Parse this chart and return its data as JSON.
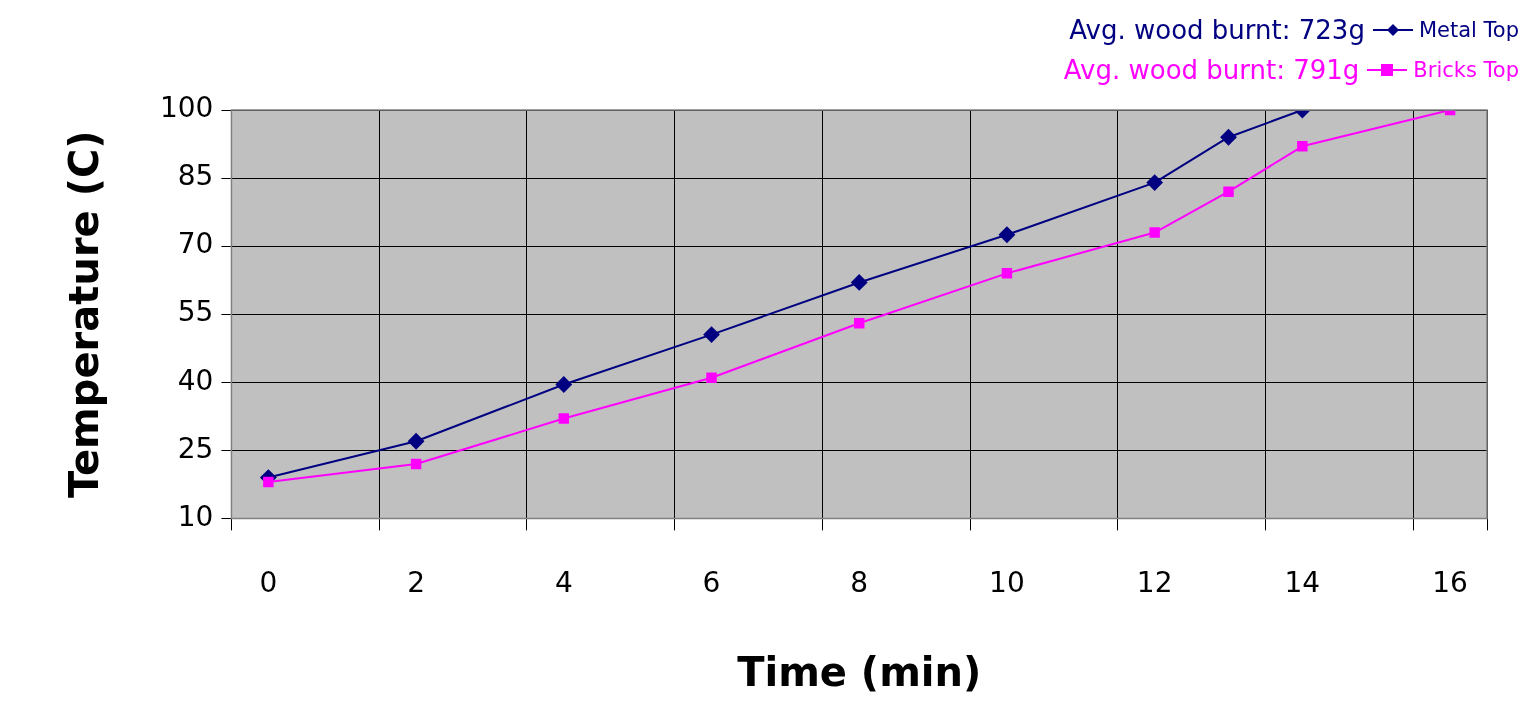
{
  "chart_data": {
    "type": "line",
    "xlabel": "Time (min)",
    "ylabel": "Temperature (C)",
    "xlim": [
      -0.5,
      16.5
    ],
    "xticks": [
      {
        "value": -0.5,
        "label": null
      },
      0,
      {
        "value": 1.5,
        "label": null
      },
      2,
      {
        "value": 3.5,
        "label": null
      },
      4,
      {
        "value": 5.5,
        "label": null
      },
      6,
      {
        "value": 7.5,
        "label": null
      },
      8,
      {
        "value": 9.5,
        "label": null
      },
      10,
      {
        "value": 11.5,
        "label": null
      },
      12,
      {
        "value": 13.5,
        "label": null
      },
      14,
      {
        "value": 15.5,
        "label": null
      },
      16,
      {
        "value": 16.5,
        "label": null
      }
    ],
    "ylim": [
      10,
      100
    ],
    "yticks": [
      10,
      25,
      40,
      55,
      70,
      85,
      100
    ],
    "grid": true,
    "legend": "top right",
    "annotations": [
      "Avg. wood burnt: 723g",
      "Avg. wood burnt: 791g"
    ],
    "series": [
      {
        "name": "Metal Top",
        "color": "#000080",
        "marker": "diamond",
        "x": [
          0,
          2,
          4,
          6,
          8,
          10,
          12,
          13,
          14
        ],
        "values": [
          19,
          27,
          39.5,
          50.5,
          62,
          72.5,
          84,
          94,
          100
        ]
      },
      {
        "name": "Bricks Top",
        "color": "#ff00ff",
        "marker": "square",
        "x": [
          0,
          2,
          4,
          6,
          8,
          10,
          12,
          13,
          14,
          16
        ],
        "values": [
          18,
          22,
          32,
          41,
          53,
          64,
          73,
          82,
          92,
          100
        ]
      }
    ]
  }
}
